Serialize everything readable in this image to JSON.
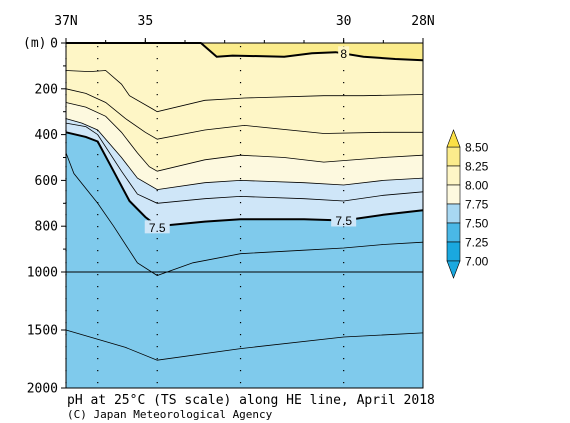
{
  "chart_data": {
    "type": "heatmap",
    "title": "pH at 25°C (TS scale) along HE line, April 2018",
    "credit": "(C) Japan Meteorological Agency",
    "ylabel": "(m)",
    "x_ticks": [
      {
        "lat": 37,
        "label": "37N"
      },
      {
        "lat": 35,
        "label": "35"
      },
      {
        "lat": 30,
        "label": "30"
      },
      {
        "lat": 28,
        "label": "28N"
      }
    ],
    "xlim": [
      37,
      28
    ],
    "y_ticks": [
      {
        "depth": 0,
        "label": "0"
      },
      {
        "depth": 200,
        "label": "200"
      },
      {
        "depth": 400,
        "label": "400"
      },
      {
        "depth": 600,
        "label": "600"
      },
      {
        "depth": 800,
        "label": "800"
      },
      {
        "depth": 1000,
        "label": "1000"
      },
      {
        "depth": 1500,
        "label": "1500"
      },
      {
        "depth": 2000,
        "label": "2000"
      }
    ],
    "y_scale_break": 1000,
    "ylim": [
      0,
      2000
    ],
    "station_lats": [
      37,
      36.2,
      34.7,
      32.6,
      30.0
    ],
    "legend_levels": [
      "8.50",
      "8.25",
      "8.00",
      "7.75",
      "7.50",
      "7.25",
      "7.00"
    ],
    "fill_colors": {
      "above_8.25": "#fbec8c",
      "8.00_8.25": "#fef6c6",
      "7.75_8.00": "#fdf9df",
      "7.50_7.75": "#cfe6f8",
      "below_7.50": "#7fcaec",
      "legend_7.50_7.75": "#a8d8f2",
      "legend_7.25_7.50": "#4ab8e6",
      "legend_below_7.00": "#1aa8df",
      "legend_above_8.50": "#fbe045"
    },
    "contour_labels": [
      {
        "value": "8",
        "lat": 30.0,
        "depth": 45
      },
      {
        "value": "7.5",
        "lat": 34.7,
        "depth": 805
      },
      {
        "value": "7.5",
        "lat": 30.0,
        "depth": 775
      }
    ],
    "contours": [
      {
        "level": 8.0,
        "bold": true,
        "points": [
          [
            37,
            0
          ],
          [
            33.6,
            0
          ],
          [
            33.2,
            60
          ],
          [
            32.8,
            55
          ],
          [
            31.5,
            60
          ],
          [
            30.8,
            45
          ],
          [
            30.2,
            40
          ],
          [
            29.5,
            60
          ],
          [
            28.7,
            70
          ],
          [
            28,
            75
          ]
        ]
      },
      {
        "level": 7.9,
        "bold": false,
        "points": [
          [
            37,
            120
          ],
          [
            36.4,
            125
          ],
          [
            36,
            120
          ],
          [
            35.6,
            180
          ],
          [
            35.4,
            230
          ],
          [
            34.8,
            290
          ],
          [
            34.7,
            300
          ],
          [
            33.5,
            250
          ],
          [
            32.5,
            240
          ],
          [
            30.5,
            230
          ],
          [
            29.5,
            230
          ],
          [
            28,
            225
          ]
        ]
      },
      {
        "level": 7.85,
        "bold": false,
        "points": [
          [
            37,
            200
          ],
          [
            36.5,
            220
          ],
          [
            36,
            260
          ],
          [
            35.5,
            330
          ],
          [
            35,
            390
          ],
          [
            34.7,
            420
          ],
          [
            33.5,
            380
          ],
          [
            32.5,
            360
          ],
          [
            30.5,
            395
          ],
          [
            29,
            390
          ],
          [
            28,
            390
          ]
        ]
      },
      {
        "level": 7.8,
        "bold": false,
        "points": [
          [
            37,
            260
          ],
          [
            36.5,
            280
          ],
          [
            36,
            320
          ],
          [
            35.6,
            390
          ],
          [
            35.2,
            480
          ],
          [
            34.9,
            540
          ],
          [
            34.7,
            560
          ],
          [
            33.5,
            510
          ],
          [
            32.6,
            490
          ],
          [
            31.5,
            500
          ],
          [
            30.5,
            520
          ],
          [
            29,
            500
          ],
          [
            28,
            490
          ]
        ]
      },
      {
        "level": 7.7,
        "bold": false,
        "points": [
          [
            37,
            330
          ],
          [
            36.6,
            350
          ],
          [
            36.2,
            380
          ],
          [
            35.6,
            500
          ],
          [
            35.2,
            590
          ],
          [
            34.7,
            640
          ],
          [
            33.5,
            610
          ],
          [
            32.6,
            600
          ],
          [
            31,
            610
          ],
          [
            30,
            620
          ],
          [
            29,
            600
          ],
          [
            28,
            590
          ]
        ]
      },
      {
        "level": 7.6,
        "bold": false,
        "points": [
          [
            37,
            350
          ],
          [
            36.5,
            365
          ],
          [
            36.2,
            400
          ],
          [
            35.6,
            560
          ],
          [
            35.2,
            660
          ],
          [
            34.7,
            700
          ],
          [
            33.5,
            680
          ],
          [
            32.6,
            670
          ],
          [
            31,
            680
          ],
          [
            30,
            690
          ],
          [
            29,
            665
          ],
          [
            28,
            650
          ]
        ]
      },
      {
        "level": 7.5,
        "bold": true,
        "points": [
          [
            37,
            390
          ],
          [
            36.5,
            410
          ],
          [
            36.2,
            430
          ],
          [
            35.8,
            560
          ],
          [
            35.4,
            690
          ],
          [
            35,
            760
          ],
          [
            34.7,
            800
          ],
          [
            33.5,
            780
          ],
          [
            32.6,
            770
          ],
          [
            31,
            770
          ],
          [
            30,
            775
          ],
          [
            29,
            750
          ],
          [
            28,
            730
          ]
        ]
      },
      {
        "level": 7.4,
        "bold": false,
        "points": [
          [
            37,
            480
          ],
          [
            36.8,
            570
          ],
          [
            36.2,
            700
          ],
          [
            35.8,
            800
          ],
          [
            35.2,
            960
          ],
          [
            34.7,
            1030
          ],
          [
            33.8,
            960
          ],
          [
            32.6,
            920
          ],
          [
            31,
            905
          ],
          [
            30,
            895
          ],
          [
            29,
            880
          ],
          [
            28,
            870
          ]
        ]
      },
      {
        "level": 7.3,
        "bold": false,
        "points": [
          [
            37,
            1500
          ],
          [
            35.5,
            1650
          ],
          [
            34.7,
            1760
          ],
          [
            32.6,
            1660
          ],
          [
            30,
            1560
          ],
          [
            28,
            1525
          ]
        ]
      }
    ]
  }
}
